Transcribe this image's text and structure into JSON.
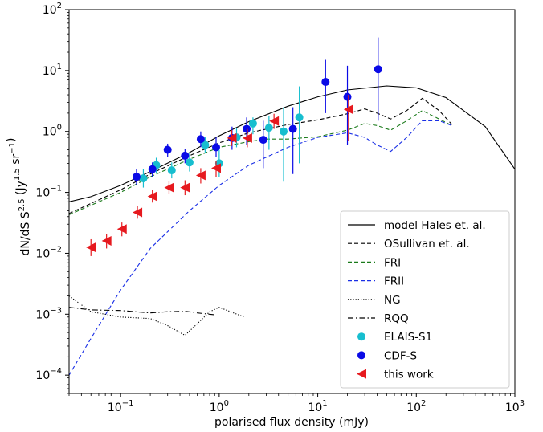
{
  "chart_data": {
    "type": "scatter",
    "xlabel": "polarised flux density (mJy)",
    "ylabel": "dN/dS S^2.5 (Jy^1.5 sr^-1)",
    "xscale": "log",
    "yscale": "log",
    "xlim": [
      0.03,
      1000
    ],
    "ylim": [
      5e-05,
      100
    ],
    "x_ticks": [
      {
        "value": 0.1,
        "base": "10",
        "exp": "−1"
      },
      {
        "value": 1,
        "base": "10",
        "exp": "0"
      },
      {
        "value": 10,
        "base": "10",
        "exp": "1"
      },
      {
        "value": 100,
        "base": "10",
        "exp": "2"
      },
      {
        "value": 1000,
        "base": "10",
        "exp": "3"
      }
    ],
    "y_ticks": [
      {
        "value": 0.0001,
        "base": "10",
        "exp": "−4"
      },
      {
        "value": 0.001,
        "base": "10",
        "exp": "−3"
      },
      {
        "value": 0.01,
        "base": "10",
        "exp": "−2"
      },
      {
        "value": 0.1,
        "base": "10",
        "exp": "−1"
      },
      {
        "value": 1,
        "base": "10",
        "exp": "0"
      },
      {
        "value": 10,
        "base": "10",
        "exp": "1"
      },
      {
        "value": 100,
        "base": "10",
        "exp": "2"
      }
    ],
    "legend_position": "lower-right",
    "lines": [
      {
        "name": "model Hales et. al.",
        "color": "#000000",
        "dash": "solid",
        "x": [
          0.03,
          0.05,
          0.1,
          0.2,
          0.5,
          1,
          2,
          5,
          10,
          20,
          50,
          100,
          200,
          500,
          1000
        ],
        "y": [
          0.07,
          0.085,
          0.13,
          0.22,
          0.45,
          0.85,
          1.45,
          2.6,
          3.7,
          4.8,
          5.6,
          5.2,
          3.6,
          1.2,
          0.24
        ]
      },
      {
        "name": "OSullivan et. al.",
        "color": "#000000",
        "dash": "dashed",
        "x": [
          0.03,
          0.1,
          0.2,
          0.5,
          1,
          2,
          5,
          10,
          20,
          30,
          40,
          55,
          80,
          115,
          170,
          230
        ],
        "y": [
          0.045,
          0.11,
          0.2,
          0.4,
          0.65,
          0.95,
          1.3,
          1.55,
          1.95,
          2.35,
          2.0,
          1.6,
          2.2,
          3.5,
          2.2,
          1.3
        ]
      },
      {
        "name": "FRI",
        "color": "#1a7a1a",
        "dash": "dashed",
        "x": [
          0.03,
          0.1,
          0.2,
          0.5,
          1,
          2,
          3,
          5,
          10,
          20,
          30,
          40,
          55,
          80,
          115,
          170,
          230
        ],
        "y": [
          0.043,
          0.1,
          0.18,
          0.35,
          0.55,
          0.68,
          0.75,
          0.75,
          0.82,
          1.05,
          1.35,
          1.25,
          1.05,
          1.5,
          2.2,
          1.6,
          1.25
        ]
      },
      {
        "name": "FRII",
        "color": "#1a2fe6",
        "dash": "dashed",
        "x": [
          0.03,
          0.05,
          0.1,
          0.2,
          0.5,
          1,
          2,
          5,
          10,
          20,
          30,
          40,
          55,
          80,
          115,
          170,
          230
        ],
        "y": [
          0.0001,
          0.0004,
          0.0025,
          0.012,
          0.05,
          0.13,
          0.28,
          0.55,
          0.8,
          0.95,
          0.8,
          0.6,
          0.47,
          0.8,
          1.5,
          1.5,
          1.25
        ]
      },
      {
        "name": "NG",
        "color": "#000000",
        "dash": "dotted",
        "x": [
          0.03,
          0.05,
          0.1,
          0.2,
          0.3,
          0.45,
          0.6,
          0.8,
          1.0,
          1.4,
          1.8
        ],
        "y": [
          0.002,
          0.0011,
          0.0009,
          0.00085,
          0.00065,
          0.00045,
          0.0007,
          0.0011,
          0.0013,
          0.00105,
          0.0009
        ]
      },
      {
        "name": "RQQ",
        "color": "#000000",
        "dash": "dashdot",
        "x": [
          0.03,
          0.05,
          0.1,
          0.2,
          0.3,
          0.45,
          0.6,
          0.9
        ],
        "y": [
          0.0013,
          0.00118,
          0.00115,
          0.00105,
          0.0011,
          0.00112,
          0.00105,
          0.00098
        ]
      }
    ],
    "points": [
      {
        "name": "ELAIS-S1",
        "color": "#17becf",
        "marker": "circle",
        "data": [
          {
            "x": 0.17,
            "y": 0.17,
            "lo": 0.12,
            "hi": 0.24
          },
          {
            "x": 0.23,
            "y": 0.28,
            "lo": 0.21,
            "hi": 0.37
          },
          {
            "x": 0.33,
            "y": 0.23,
            "lo": 0.17,
            "hi": 0.31
          },
          {
            "x": 0.5,
            "y": 0.31,
            "lo": 0.22,
            "hi": 0.44
          },
          {
            "x": 0.72,
            "y": 0.6,
            "lo": 0.45,
            "hi": 0.8
          },
          {
            "x": 1.0,
            "y": 0.3,
            "lo": 0.18,
            "hi": 0.5
          },
          {
            "x": 1.5,
            "y": 0.8,
            "lo": 0.55,
            "hi": 1.15
          },
          {
            "x": 2.2,
            "y": 1.35,
            "lo": 0.9,
            "hi": 1.7
          },
          {
            "x": 3.2,
            "y": 1.15,
            "lo": 0.5,
            "hi": 1.8
          },
          {
            "x": 4.5,
            "y": 1.0,
            "lo": 0.15,
            "hi": 2.5
          },
          {
            "x": 6.5,
            "y": 1.7,
            "lo": 0.3,
            "hi": 5.5
          }
        ]
      },
      {
        "name": "CDF-S",
        "color": "#0a0ae6",
        "marker": "circle",
        "data": [
          {
            "x": 0.145,
            "y": 0.18,
            "lo": 0.13,
            "hi": 0.24
          },
          {
            "x": 0.21,
            "y": 0.24,
            "lo": 0.18,
            "hi": 0.31
          },
          {
            "x": 0.3,
            "y": 0.5,
            "lo": 0.38,
            "hi": 0.63
          },
          {
            "x": 0.45,
            "y": 0.4,
            "lo": 0.3,
            "hi": 0.52
          },
          {
            "x": 0.65,
            "y": 0.75,
            "lo": 0.55,
            "hi": 1.0
          },
          {
            "x": 0.93,
            "y": 0.55,
            "lo": 0.38,
            "hi": 0.8
          },
          {
            "x": 1.35,
            "y": 0.78,
            "lo": 0.5,
            "hi": 1.2
          },
          {
            "x": 1.9,
            "y": 1.1,
            "lo": 0.6,
            "hi": 1.7
          },
          {
            "x": 2.8,
            "y": 0.73,
            "lo": 0.25,
            "hi": 1.5
          },
          {
            "x": 5.6,
            "y": 1.1,
            "lo": 0.2,
            "hi": 2.5
          },
          {
            "x": 12,
            "y": 6.5,
            "lo": 2.0,
            "hi": 15
          },
          {
            "x": 20,
            "y": 3.7,
            "lo": 0.6,
            "hi": 12
          },
          {
            "x": 41,
            "y": 10.5,
            "lo": 1.5,
            "hi": 35
          }
        ]
      },
      {
        "name": "this work",
        "color": "#e6191e",
        "marker": "triangle-left",
        "data": [
          {
            "x": 0.05,
            "y": 0.0125,
            "lo": 0.009,
            "hi": 0.017
          },
          {
            "x": 0.072,
            "y": 0.016,
            "lo": 0.012,
            "hi": 0.021
          },
          {
            "x": 0.103,
            "y": 0.025,
            "lo": 0.019,
            "hi": 0.032
          },
          {
            "x": 0.148,
            "y": 0.047,
            "lo": 0.037,
            "hi": 0.06
          },
          {
            "x": 0.21,
            "y": 0.086,
            "lo": 0.068,
            "hi": 0.11
          },
          {
            "x": 0.31,
            "y": 0.12,
            "lo": 0.094,
            "hi": 0.153
          },
          {
            "x": 0.45,
            "y": 0.12,
            "lo": 0.09,
            "hi": 0.158
          },
          {
            "x": 0.65,
            "y": 0.19,
            "lo": 0.14,
            "hi": 0.25
          },
          {
            "x": 0.93,
            "y": 0.25,
            "lo": 0.18,
            "hi": 0.33
          },
          {
            "x": 1.34,
            "y": 0.78,
            "lo": 0.58,
            "hi": 1.05
          },
          {
            "x": 1.93,
            "y": 0.78,
            "lo": 0.55,
            "hi": 1.1
          },
          {
            "x": 3.6,
            "y": 1.48,
            "lo": 1.1,
            "hi": 1.95
          },
          {
            "x": 20.5,
            "y": 2.3,
            "lo": 0.7,
            "hi": 4.0
          }
        ]
      }
    ],
    "legend": [
      {
        "label": "model Hales et. al.",
        "kind": "line",
        "color": "#000000",
        "dash": "solid"
      },
      {
        "label": "OSullivan et. al.",
        "kind": "line",
        "color": "#000000",
        "dash": "dashed"
      },
      {
        "label": "FRI",
        "kind": "line",
        "color": "#1a7a1a",
        "dash": "dashed"
      },
      {
        "label": "FRII",
        "kind": "line",
        "color": "#1a2fe6",
        "dash": "dashed"
      },
      {
        "label": "NG",
        "kind": "line",
        "color": "#000000",
        "dash": "dotted"
      },
      {
        "label": "RQQ",
        "kind": "line",
        "color": "#000000",
        "dash": "dashdot"
      },
      {
        "label": "ELAIS-S1",
        "kind": "circle",
        "color": "#17becf"
      },
      {
        "label": "CDF-S",
        "kind": "circle",
        "color": "#0a0ae6"
      },
      {
        "label": "this work",
        "kind": "triangle-left",
        "color": "#e6191e"
      }
    ]
  }
}
